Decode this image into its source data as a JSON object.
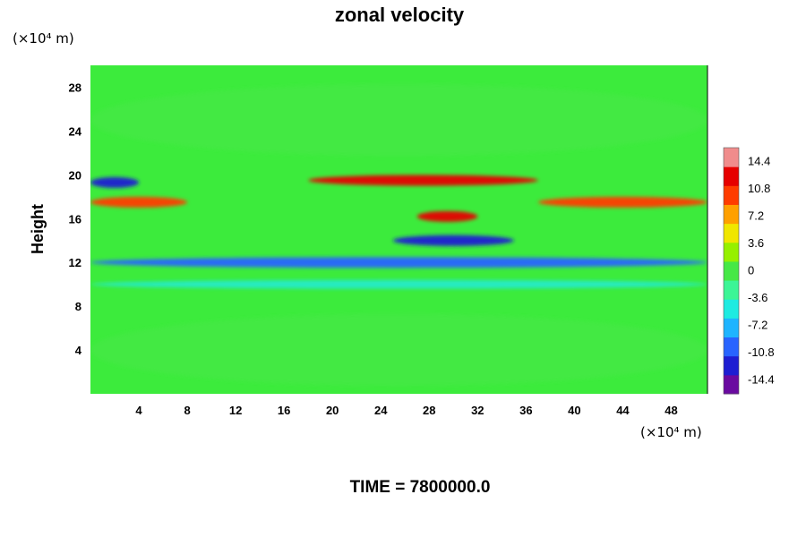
{
  "chart_data": {
    "type": "heatmap",
    "title": "zonal velocity",
    "xlabel": "",
    "ylabel": "Height",
    "x_unit": "(×10⁴ m)",
    "y_unit": "(×10⁴ m)",
    "xlim": [
      0,
      51
    ],
    "ylim": [
      0,
      30
    ],
    "x_ticks": [
      4,
      8,
      12,
      16,
      20,
      24,
      28,
      32,
      36,
      40,
      44,
      48
    ],
    "y_ticks": [
      4,
      8,
      12,
      16,
      20,
      24,
      28
    ],
    "colorbar": {
      "range": [
        -16.2,
        16.2
      ],
      "ticks": [
        14.4,
        10.8,
        7.2,
        3.6,
        0,
        -3.6,
        -7.2,
        -10.8,
        -14.4
      ],
      "tick_labels": [
        "14.4",
        "10.8",
        "7.2",
        "3.6",
        "0",
        "-3.6",
        "-7.2",
        "-10.8",
        "-14.4"
      ],
      "colors_low_to_high": [
        "#6a0aa0",
        "#1e1ed2",
        "#2864ff",
        "#1eb4ff",
        "#1eebe1",
        "#3cf596",
        "#46e846",
        "#96f000",
        "#f0e600",
        "#ffa000",
        "#ff3c00",
        "#e60000",
        "#f08c8c"
      ]
    },
    "features": [
      {
        "label": "strong negative band",
        "x_range": [
          0,
          4
        ],
        "y": 19.3,
        "value": -13
      },
      {
        "label": "strong positive jet",
        "x_range": [
          0,
          8
        ],
        "y": 17.5,
        "value": 10
      },
      {
        "label": "strong positive jet",
        "x_range": [
          18,
          37
        ],
        "y": 19.5,
        "value": 13
      },
      {
        "label": "positive patch",
        "x_range": [
          27,
          32
        ],
        "y": 16.2,
        "value": 13
      },
      {
        "label": "strong positive jet",
        "x_range": [
          37,
          51
        ],
        "y": 17.5,
        "value": 11
      },
      {
        "label": "negative trough",
        "x_range": [
          25,
          35
        ],
        "y": 14,
        "value": -12
      },
      {
        "label": "negative band",
        "x_range": [
          0,
          51
        ],
        "y": 12,
        "value": -9
      },
      {
        "label": "negative band",
        "x_range": [
          0,
          51
        ],
        "y": 10,
        "value": -5
      },
      {
        "label": "near-zero upper region",
        "x_range": [
          0,
          51
        ],
        "y": 25,
        "value": 0
      },
      {
        "label": "weak positive lower region",
        "x_range": [
          0,
          51
        ],
        "y": 4,
        "value": 1
      }
    ]
  },
  "footer": {
    "time_label": "TIME = 7800000.0"
  }
}
